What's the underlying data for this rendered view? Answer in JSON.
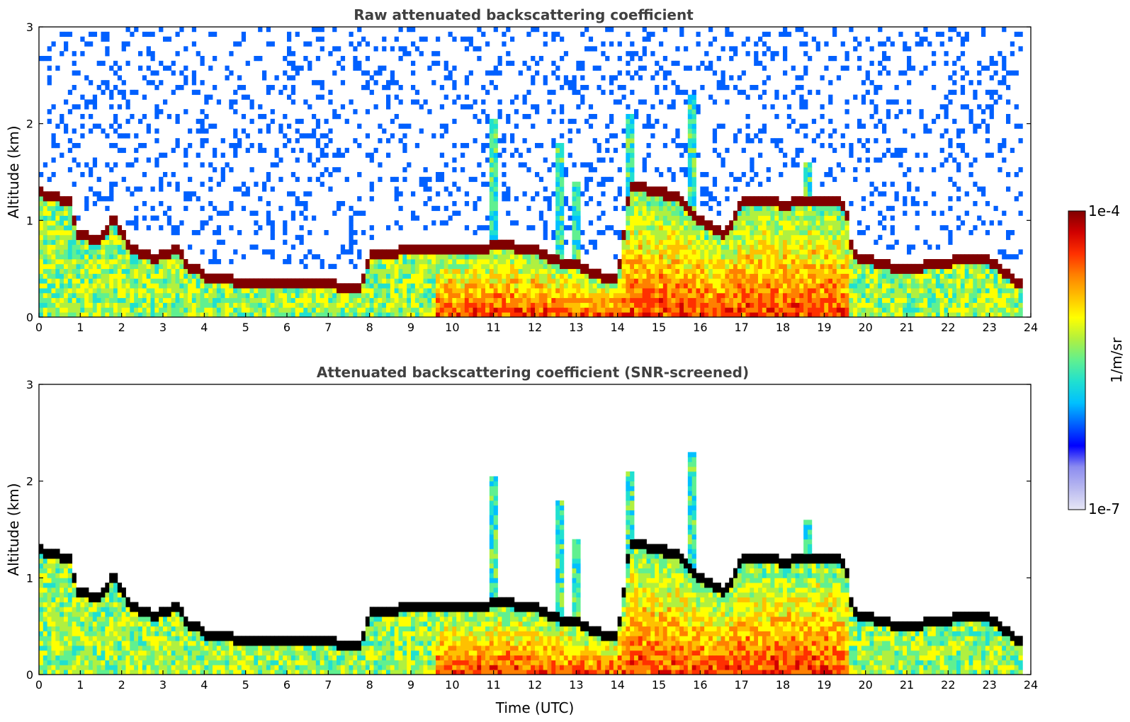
{
  "chart_data": [
    {
      "type": "heatmap",
      "title": "Raw attenuated backscattering coefficient",
      "xlabel": "",
      "ylabel": "Altitude (km)",
      "xlim": [
        0,
        24
      ],
      "ylim": [
        0,
        3
      ],
      "xticks": [
        "0",
        "1",
        "2",
        "3",
        "4",
        "5",
        "6",
        "7",
        "8",
        "9",
        "10",
        "11",
        "12",
        "13",
        "14",
        "15",
        "16",
        "17",
        "18",
        "19",
        "20",
        "21",
        "22",
        "23",
        "24"
      ],
      "yticks": [
        "0",
        "1",
        "2",
        "3"
      ],
      "variant": "raw",
      "features": {
        "cloud_top_km": [
          [
            0.0,
            1.3
          ],
          [
            0.4,
            1.25
          ],
          [
            0.8,
            1.2
          ],
          [
            0.9,
            0.85
          ],
          [
            1.5,
            0.82
          ],
          [
            1.8,
            1.05
          ],
          [
            2.2,
            0.72
          ],
          [
            2.8,
            0.62
          ],
          [
            3.4,
            0.72
          ],
          [
            3.6,
            0.48
          ],
          [
            3.8,
            0.55
          ],
          [
            4.0,
            0.4
          ],
          [
            5.0,
            0.38
          ],
          [
            6.0,
            0.38
          ],
          [
            7.0,
            0.35
          ],
          [
            7.8,
            0.3
          ],
          [
            8.0,
            0.65
          ],
          [
            9.0,
            0.7
          ],
          [
            9.6,
            0.72
          ],
          [
            10.5,
            0.72
          ],
          [
            11.3,
            0.75
          ],
          [
            12.0,
            0.7
          ],
          [
            12.5,
            0.6
          ],
          [
            13.0,
            0.55
          ],
          [
            13.3,
            0.48
          ],
          [
            14.0,
            0.38
          ],
          [
            14.3,
            1.38
          ],
          [
            15.0,
            1.3
          ],
          [
            15.5,
            1.25
          ],
          [
            16.0,
            1.0
          ],
          [
            16.6,
            0.85
          ],
          [
            17.0,
            1.2
          ],
          [
            17.5,
            1.22
          ],
          [
            18.0,
            1.18
          ],
          [
            18.6,
            1.2
          ],
          [
            19.0,
            1.22
          ],
          [
            19.5,
            1.18
          ],
          [
            19.7,
            0.65
          ],
          [
            20.5,
            0.55
          ],
          [
            21.0,
            0.5
          ],
          [
            22.0,
            0.58
          ],
          [
            22.5,
            0.62
          ],
          [
            23.0,
            0.6
          ],
          [
            23.5,
            0.42
          ],
          [
            23.8,
            0.32
          ]
        ],
        "high_plumes": [
          [
            11.0,
            2.05
          ],
          [
            12.6,
            1.8
          ],
          [
            13.0,
            1.4
          ],
          [
            14.3,
            2.1
          ],
          [
            15.8,
            2.3
          ],
          [
            18.6,
            1.6
          ]
        ]
      }
    },
    {
      "type": "heatmap",
      "title": "Attenuated backscattering coefficient (SNR-screened)",
      "xlabel": "Time (UTC)",
      "ylabel": "Altitude (km)",
      "xlim": [
        0,
        24
      ],
      "ylim": [
        0,
        3
      ],
      "xticks": [
        "0",
        "1",
        "2",
        "3",
        "4",
        "5",
        "6",
        "7",
        "8",
        "9",
        "10",
        "11",
        "12",
        "13",
        "14",
        "15",
        "16",
        "17",
        "18",
        "19",
        "20",
        "21",
        "22",
        "23",
        "24"
      ],
      "yticks": [
        "0",
        "1",
        "2",
        "3"
      ],
      "variant": "screened",
      "features": {
        "cloud_top_km": [
          [
            0.0,
            1.3
          ],
          [
            0.4,
            1.25
          ],
          [
            0.8,
            1.2
          ],
          [
            0.9,
            0.85
          ],
          [
            1.5,
            0.82
          ],
          [
            1.8,
            1.05
          ],
          [
            2.2,
            0.72
          ],
          [
            2.8,
            0.62
          ],
          [
            3.4,
            0.72
          ],
          [
            3.6,
            0.48
          ],
          [
            3.8,
            0.55
          ],
          [
            4.0,
            0.4
          ],
          [
            5.0,
            0.38
          ],
          [
            6.0,
            0.38
          ],
          [
            7.0,
            0.35
          ],
          [
            7.8,
            0.3
          ],
          [
            8.0,
            0.65
          ],
          [
            9.0,
            0.7
          ],
          [
            9.6,
            0.72
          ],
          [
            10.5,
            0.72
          ],
          [
            11.3,
            0.75
          ],
          [
            12.0,
            0.7
          ],
          [
            12.5,
            0.6
          ],
          [
            13.0,
            0.55
          ],
          [
            13.3,
            0.48
          ],
          [
            14.0,
            0.38
          ],
          [
            14.3,
            1.38
          ],
          [
            15.0,
            1.3
          ],
          [
            15.5,
            1.25
          ],
          [
            16.0,
            1.0
          ],
          [
            16.6,
            0.85
          ],
          [
            17.0,
            1.2
          ],
          [
            17.5,
            1.22
          ],
          [
            18.0,
            1.18
          ],
          [
            18.6,
            1.2
          ],
          [
            19.0,
            1.22
          ],
          [
            19.5,
            1.18
          ],
          [
            19.7,
            0.65
          ],
          [
            20.5,
            0.55
          ],
          [
            21.0,
            0.5
          ],
          [
            22.0,
            0.58
          ],
          [
            22.5,
            0.62
          ],
          [
            23.0,
            0.6
          ],
          [
            23.5,
            0.42
          ],
          [
            23.8,
            0.32
          ]
        ],
        "high_plumes": [
          [
            11.0,
            2.05
          ],
          [
            12.6,
            1.8
          ],
          [
            13.0,
            1.4
          ],
          [
            14.3,
            2.1
          ],
          [
            15.8,
            2.3
          ],
          [
            18.6,
            1.6
          ]
        ]
      }
    }
  ],
  "colorbar": {
    "max_label": "1e-4",
    "min_label": "1e-7",
    "unit_label": "1/m/sr",
    "scale": "log",
    "colormap": "jet",
    "colors": [
      "#e6e6f5",
      "#b9b9f0",
      "#8c8cf0",
      "#0000ff",
      "#0060ff",
      "#00c0ff",
      "#20e0d0",
      "#60f090",
      "#b0f040",
      "#ffff00",
      "#ffc000",
      "#ff8000",
      "#ff3000",
      "#d00000",
      "#800000"
    ]
  }
}
